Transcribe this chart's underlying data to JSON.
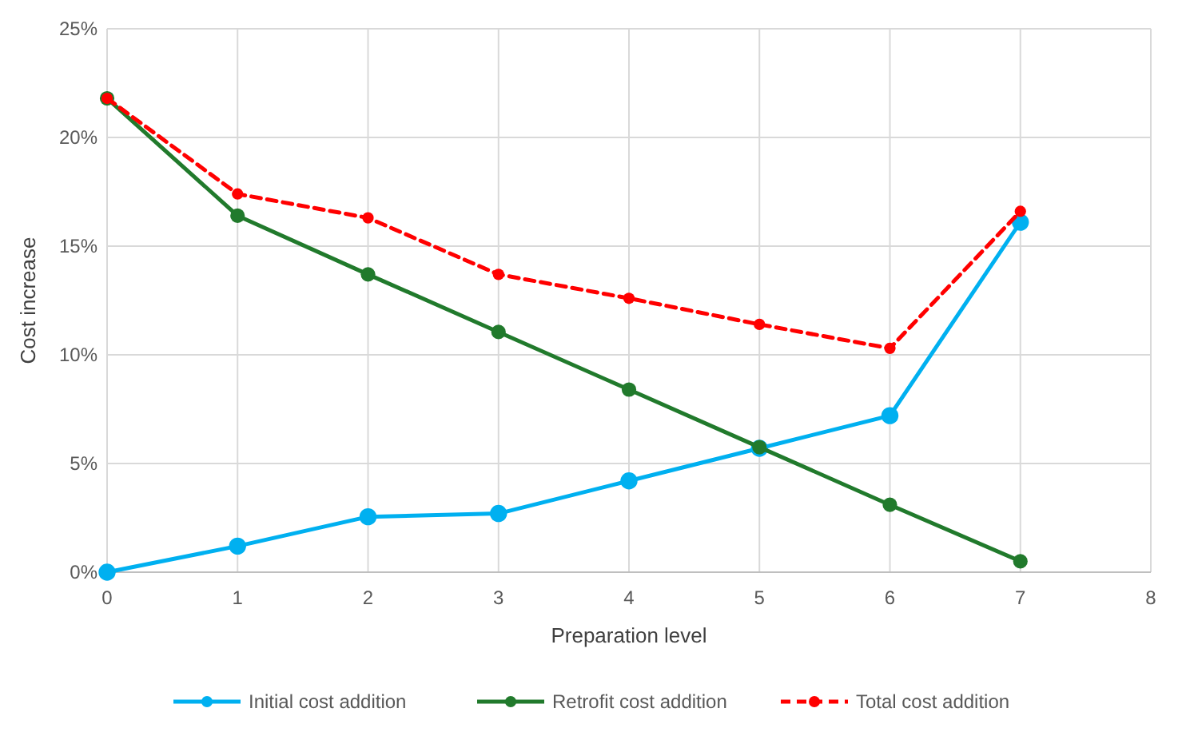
{
  "chart_data": {
    "type": "line",
    "xlabel": "Preparation level",
    "ylabel": "Cost increase",
    "x": [
      0,
      1,
      2,
      3,
      4,
      5,
      6,
      7
    ],
    "xlim": [
      0,
      8
    ],
    "xticks": [
      0,
      1,
      2,
      3,
      4,
      5,
      6,
      7,
      8
    ],
    "ylim": [
      0,
      25
    ],
    "yticks": [
      {
        "value": 0,
        "label": "0%"
      },
      {
        "value": 5,
        "label": "5%"
      },
      {
        "value": 10,
        "label": "10%"
      },
      {
        "value": 15,
        "label": "15%"
      },
      {
        "value": 20,
        "label": "20%"
      },
      {
        "value": 25,
        "label": "25%"
      }
    ],
    "grid": true,
    "legend": "bottom",
    "marker": "circle",
    "line_style": "solid",
    "series": [
      {
        "name": "Initial cost addition",
        "color": "#00b0f0",
        "values": [
          0,
          1.2,
          2.55,
          2.7,
          4.2,
          5.7,
          7.2,
          16.1
        ]
      },
      {
        "name": "Retrofit cost addition",
        "color": "#217a2c",
        "values": [
          21.8,
          16.4,
          13.7,
          11.05,
          8.4,
          5.75,
          3.1,
          0.5
        ]
      },
      {
        "name": "Total cost addition",
        "color": "#ff0000",
        "line_style": "dashed",
        "values": [
          21.8,
          17.4,
          16.3,
          13.7,
          12.6,
          11.4,
          10.3,
          16.6
        ]
      }
    ]
  }
}
